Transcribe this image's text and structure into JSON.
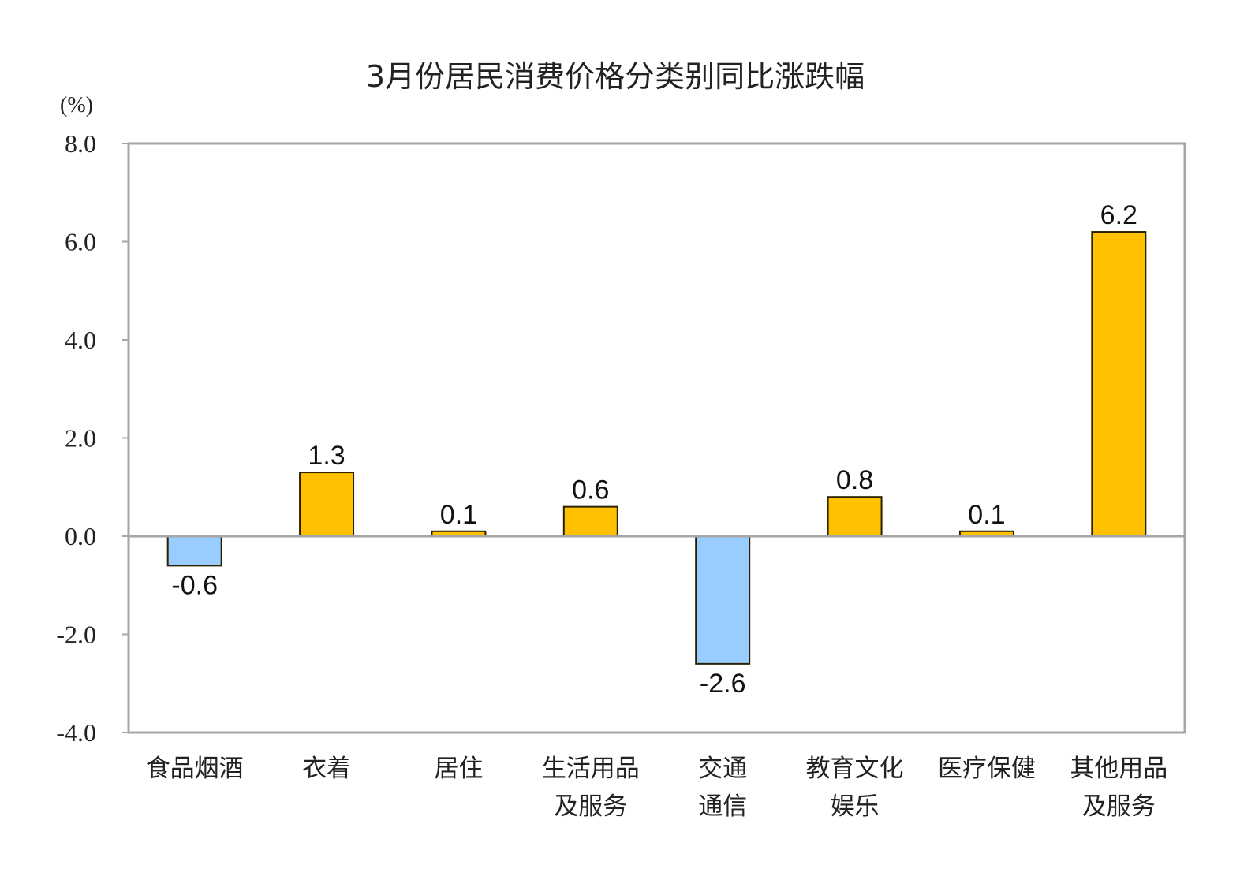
{
  "chart_data": {
    "type": "bar",
    "title": "3月份居民消费价格分类别同比涨跌幅",
    "ylabel": "(%)",
    "xlabel": "",
    "ylim": [
      -4.0,
      8.0
    ],
    "yticks": [
      "8.0",
      "6.0",
      "4.0",
      "2.0",
      "0.0",
      "-2.0",
      "-4.0"
    ],
    "ytick_values": [
      8,
      6,
      4,
      2,
      0,
      -2,
      -4
    ],
    "grid": false,
    "categories": [
      [
        "食品烟酒"
      ],
      [
        "衣着"
      ],
      [
        "居住"
      ],
      [
        "生活用品",
        "及服务"
      ],
      [
        "交通",
        "通信"
      ],
      [
        "教育文化",
        "娱乐"
      ],
      [
        "医疗保健"
      ],
      [
        "其他用品",
        "及服务"
      ]
    ],
    "values": [
      -0.6,
      1.3,
      0.1,
      0.6,
      -2.6,
      0.8,
      0.1,
      6.2
    ],
    "data_labels": [
      "-0.6",
      "1.3",
      "0.1",
      "0.6",
      "-2.6",
      "0.8",
      "0.1",
      "6.2"
    ],
    "colors": {
      "positive": "#FFC000",
      "negative": "#99CCFF",
      "bar_border": "#2a2000",
      "axis": "#a6a6a6"
    }
  }
}
